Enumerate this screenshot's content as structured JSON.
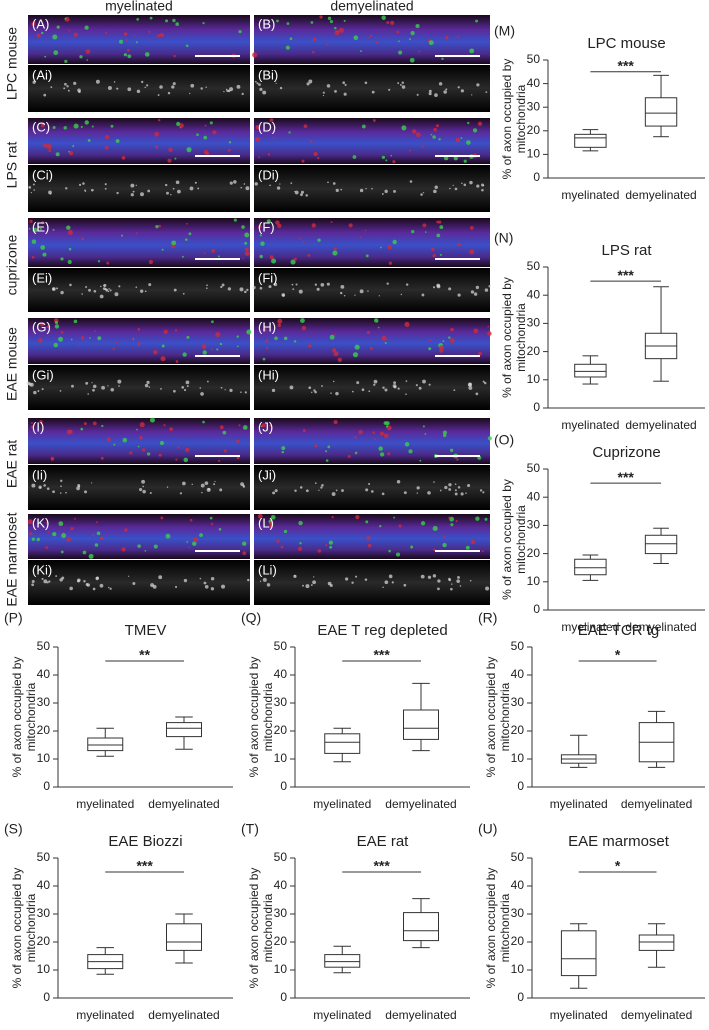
{
  "columns": [
    "myelinated",
    "demyelinated"
  ],
  "rows": [
    {
      "label": "LPC mouse",
      "panels": [
        "(A)",
        "(B)",
        "(Ai)",
        "(Bi)"
      ]
    },
    {
      "label": "LPS rat",
      "panels": [
        "(C)",
        "(D)",
        "(Ci)",
        "(Di)"
      ]
    },
    {
      "label": "cuprizone",
      "panels": [
        "(E)",
        "(F)",
        "(Ei)",
        "(Fi)"
      ]
    },
    {
      "label": "EAE mouse",
      "panels": [
        "(G)",
        "(H)",
        "(Gi)",
        "(Hi)"
      ]
    },
    {
      "label": "EAE rat",
      "panels": [
        "(I)",
        "(J)",
        "(Ii)",
        "(Ji)"
      ]
    },
    {
      "label": "EAE marmoset",
      "panels": [
        "(K)",
        "(L)",
        "(Ki)",
        "(Li)"
      ]
    }
  ],
  "chart_data": [
    {
      "type": "box",
      "panel": "(M)",
      "title": "LPC mouse",
      "ylabel": [
        "% of axon occupied by",
        "mitochondria"
      ],
      "categories": [
        "myelinated",
        "demyelinated"
      ],
      "ylim": [
        0,
        50
      ],
      "yticks": [
        0,
        10,
        20,
        30,
        40,
        50
      ],
      "annotation": "***",
      "boxes": [
        {
          "whislo": 11.5,
          "q1": 13,
          "med": 17,
          "q3": 18.5,
          "whishi": 20.5
        },
        {
          "whislo": 17.5,
          "q1": 22,
          "med": 27.5,
          "q3": 34,
          "whishi": 43.5
        }
      ]
    },
    {
      "type": "box",
      "panel": "(N)",
      "title": "LPS rat",
      "ylabel": [
        "% of axon occupied by",
        "mitochondria"
      ],
      "categories": [
        "myelinated",
        "demyelinated"
      ],
      "ylim": [
        0,
        50
      ],
      "yticks": [
        0,
        10,
        20,
        30,
        40,
        50
      ],
      "annotation": "***",
      "boxes": [
        {
          "whislo": 8.5,
          "q1": 11,
          "med": 13,
          "q3": 15.5,
          "whishi": 18.5
        },
        {
          "whislo": 9.5,
          "q1": 17.5,
          "med": 22,
          "q3": 26.5,
          "whishi": 43
        }
      ]
    },
    {
      "type": "box",
      "panel": "(O)",
      "title": "Cuprizone",
      "ylabel": [
        "% of axon occupied by",
        "mitochondria"
      ],
      "categories": [
        "myelinated",
        "demyelinated"
      ],
      "ylim": [
        0,
        50
      ],
      "yticks": [
        0,
        10,
        20,
        30,
        40,
        50
      ],
      "annotation": "***",
      "boxes": [
        {
          "whislo": 10.5,
          "q1": 12.5,
          "med": 15,
          "q3": 18,
          "whishi": 19.5
        },
        {
          "whislo": 16.5,
          "q1": 20,
          "med": 23.5,
          "q3": 26.5,
          "whishi": 29
        }
      ]
    },
    {
      "type": "box",
      "panel": "(P)",
      "title": "TMEV",
      "ylabel": [
        "% of axon occupied by",
        "mitochondria"
      ],
      "categories": [
        "myelinated",
        "demyelinated"
      ],
      "ylim": [
        0,
        50
      ],
      "yticks": [
        0,
        10,
        20,
        30,
        40,
        50
      ],
      "annotation": "**",
      "boxes": [
        {
          "whislo": 11,
          "q1": 13,
          "med": 15,
          "q3": 17.5,
          "whishi": 21
        },
        {
          "whislo": 13.5,
          "q1": 18,
          "med": 21,
          "q3": 23,
          "whishi": 25
        }
      ]
    },
    {
      "type": "box",
      "panel": "(Q)",
      "title": "EAE T reg depleted",
      "ylabel": [
        "% of axon occupied by",
        "mitochondria"
      ],
      "categories": [
        "myelinated",
        "demyelinated"
      ],
      "ylim": [
        0,
        50
      ],
      "yticks": [
        0,
        10,
        20,
        30,
        40,
        50
      ],
      "annotation": "***",
      "boxes": [
        {
          "whislo": 9,
          "q1": 12,
          "med": 16,
          "q3": 19,
          "whishi": 21
        },
        {
          "whislo": 13,
          "q1": 17,
          "med": 21,
          "q3": 27.5,
          "whishi": 37
        }
      ]
    },
    {
      "type": "box",
      "panel": "(R)",
      "title": "EAE TCR tg",
      "ylabel": [
        "% of axon occupied by",
        "mitochondria"
      ],
      "categories": [
        "myelinated",
        "demyelinated"
      ],
      "ylim": [
        0,
        50
      ],
      "yticks": [
        0,
        10,
        20,
        30,
        40,
        50
      ],
      "annotation": "*",
      "boxes": [
        {
          "whislo": 7,
          "q1": 8.5,
          "med": 10,
          "q3": 11.5,
          "whishi": 18.5
        },
        {
          "whislo": 7,
          "q1": 9,
          "med": 16,
          "q3": 23,
          "whishi": 27
        }
      ]
    },
    {
      "type": "box",
      "panel": "(S)",
      "title": "EAE Biozzi",
      "ylabel": [
        "% of axon occupied by",
        "mitochondria"
      ],
      "categories": [
        "myelinated",
        "demyelinated"
      ],
      "ylim": [
        0,
        50
      ],
      "yticks": [
        0,
        10,
        20,
        30,
        40,
        50
      ],
      "annotation": "***",
      "boxes": [
        {
          "whislo": 8.5,
          "q1": 10.5,
          "med": 13,
          "q3": 15.5,
          "whishi": 18
        },
        {
          "whislo": 12.5,
          "q1": 17,
          "med": 20,
          "q3": 26.5,
          "whishi": 30
        }
      ]
    },
    {
      "type": "box",
      "panel": "(T)",
      "title": "EAE rat",
      "ylabel": [
        "% of axon occupied by",
        "mitochondria"
      ],
      "categories": [
        "myelinated",
        "demyelinated"
      ],
      "ylim": [
        0,
        50
      ],
      "yticks": [
        0,
        10,
        20,
        30,
        40,
        50
      ],
      "annotation": "***",
      "boxes": [
        {
          "whislo": 9,
          "q1": 11,
          "med": 13,
          "q3": 15.5,
          "whishi": 18.5
        },
        {
          "whislo": 18,
          "q1": 20.5,
          "med": 24,
          "q3": 30.5,
          "whishi": 35.5
        }
      ]
    },
    {
      "type": "box",
      "panel": "(U)",
      "title": "EAE marmoset",
      "ylabel": [
        "% of axon occupied by",
        "mitochondria"
      ],
      "categories": [
        "myelinated",
        "demyelinated"
      ],
      "ylim": [
        0,
        50
      ],
      "yticks": [
        0,
        10,
        20,
        30,
        40,
        50
      ],
      "annotation": "*",
      "boxes": [
        {
          "whislo": 3.5,
          "q1": 8,
          "med": 14,
          "q3": 24,
          "whishi": 26.5
        },
        {
          "whislo": 11,
          "q1": 17,
          "med": 20,
          "q3": 22.5,
          "whishi": 26.5
        }
      ]
    }
  ]
}
